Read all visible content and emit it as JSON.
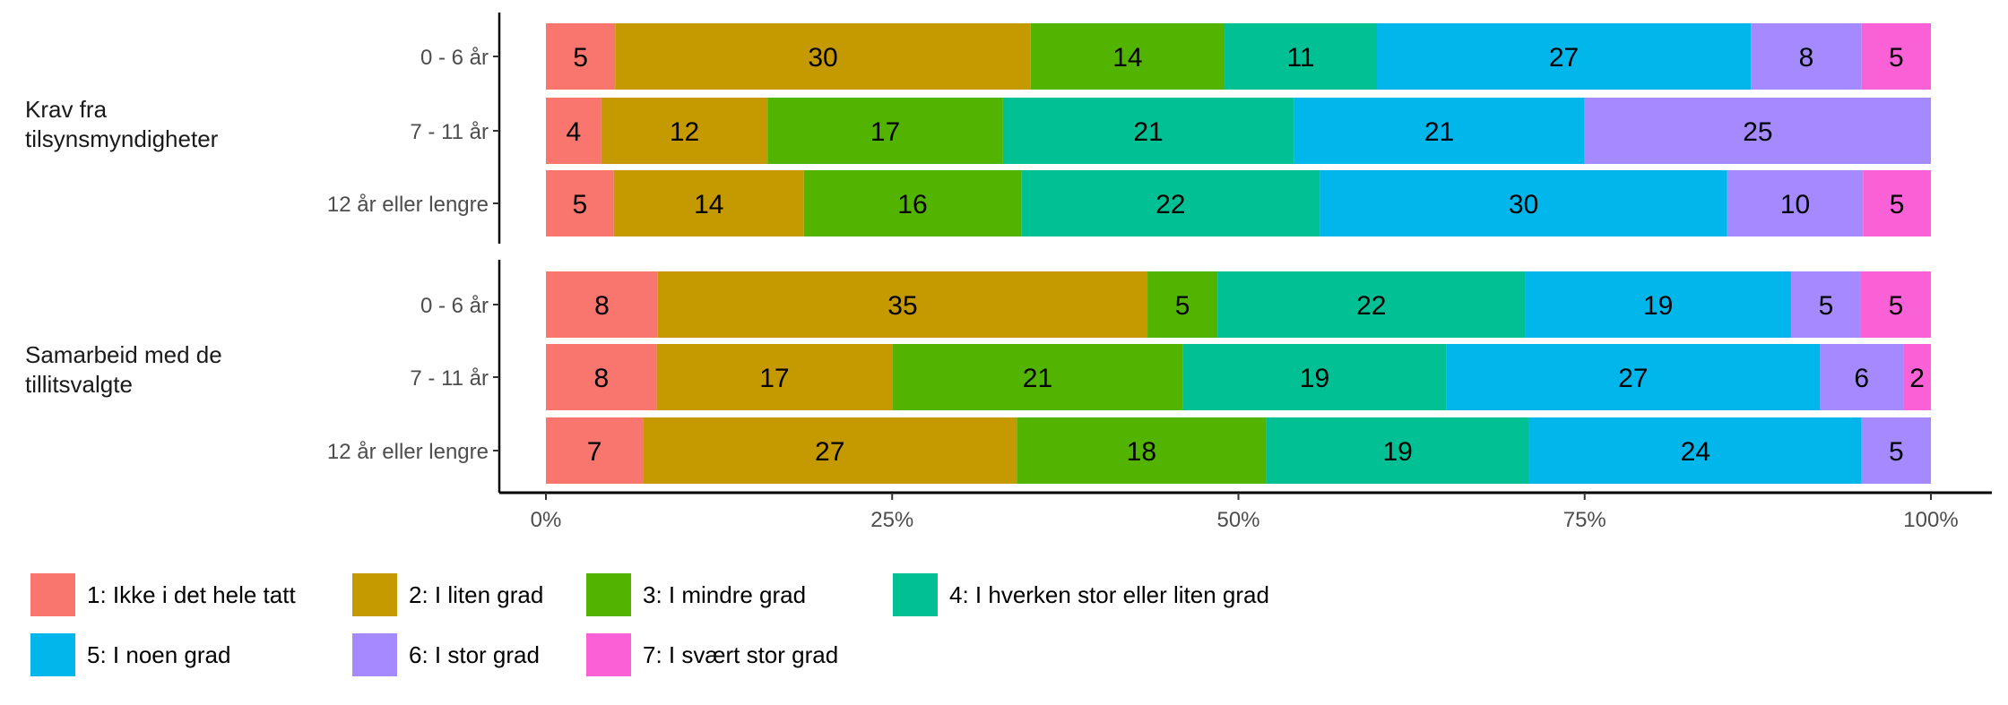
{
  "chart_data": {
    "type": "bar",
    "orientation": "horizontal",
    "stacked": true,
    "percent": true,
    "xlim": [
      0,
      100
    ],
    "x_ticks": [
      "0%",
      "25%",
      "50%",
      "75%",
      "100%"
    ],
    "legend_position": "bottom",
    "levels": [
      {
        "name": "1: Ikke i det hele tatt",
        "color": "#F8766D"
      },
      {
        "name": "2: I liten grad",
        "color": "#C49A00"
      },
      {
        "name": "3: I mindre grad",
        "color": "#53B400"
      },
      {
        "name": "4: I hverken stor eller liten grad",
        "color": "#00C094"
      },
      {
        "name": "5: I noen grad",
        "color": "#00B6EB"
      },
      {
        "name": "6: I stor grad",
        "color": "#A58AFF"
      },
      {
        "name": "7: I svært stor grad",
        "color": "#FB61D7"
      }
    ],
    "panels": [
      {
        "label": [
          "Krav fra",
          "tilsynsmyndigheter"
        ],
        "rows": [
          {
            "category": "0 - 6 år",
            "values": [
              5,
              30,
              14,
              11,
              27,
              8,
              5
            ]
          },
          {
            "category": "7 - 11 år",
            "values": [
              4,
              12,
              17,
              21,
              21,
              25,
              0
            ]
          },
          {
            "category": "12 år eller lengre",
            "values": [
              5,
              14,
              16,
              22,
              30,
              10,
              5
            ]
          }
        ]
      },
      {
        "label": [
          "Samarbeid med de",
          "tillitsvalgte"
        ],
        "rows": [
          {
            "category": "0 - 6 år",
            "values": [
              8,
              35,
              5,
              22,
              19,
              5,
              5
            ]
          },
          {
            "category": "7 - 11 år",
            "values": [
              8,
              17,
              21,
              19,
              27,
              6,
              2
            ]
          },
          {
            "category": "12 år eller lengre",
            "values": [
              7,
              27,
              18,
              19,
              24,
              5,
              0
            ]
          }
        ]
      }
    ]
  }
}
